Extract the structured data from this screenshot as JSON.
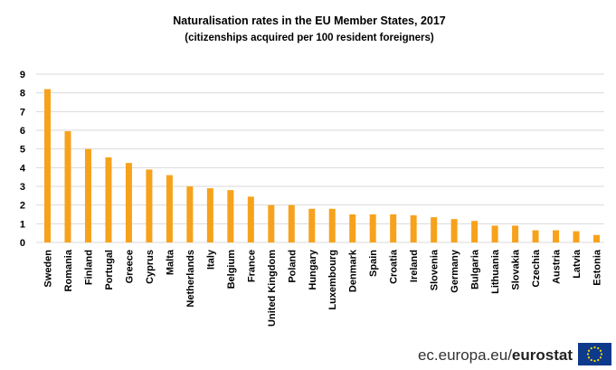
{
  "chart_data": {
    "type": "bar",
    "title": "Naturalisation rates in the EU Member States, 2017",
    "subtitle": "(citizenships acquired per 100 resident foreigners)",
    "xlabel": "",
    "ylabel": "",
    "ylim": [
      0,
      9
    ],
    "yticks": [
      0,
      1,
      2,
      3,
      4,
      5,
      6,
      7,
      8,
      9
    ],
    "grid": true,
    "bar_color": "#f7a21c",
    "categories": [
      "Sweden",
      "Romania",
      "Finland",
      "Portugal",
      "Greece",
      "Cyprus",
      "Malta",
      "Netherlands",
      "Italy",
      "Belgium",
      "France",
      "United Kingdom",
      "Poland",
      "Hungary",
      "Luxembourg",
      "Denmark",
      "Spain",
      "Croatia",
      "Ireland",
      "Slovenia",
      "Germany",
      "Bulgaria",
      "Lithuania",
      "Slovakia",
      "Czechia",
      "Austria",
      "Latvia",
      "Estonia"
    ],
    "values": [
      8.2,
      5.95,
      5.0,
      4.55,
      4.25,
      3.9,
      3.6,
      3.0,
      2.9,
      2.8,
      2.45,
      2.0,
      2.0,
      1.8,
      1.8,
      1.5,
      1.5,
      1.5,
      1.45,
      1.35,
      1.25,
      1.15,
      0.9,
      0.9,
      0.65,
      0.65,
      0.6,
      0.4
    ]
  },
  "footer": {
    "source_plain": "ec.europa.eu/",
    "source_bold": "eurostat"
  },
  "colors": {
    "grid": "#d9d9d9",
    "flag_blue": "#0e3a8c",
    "flag_star": "#ffdd00"
  }
}
